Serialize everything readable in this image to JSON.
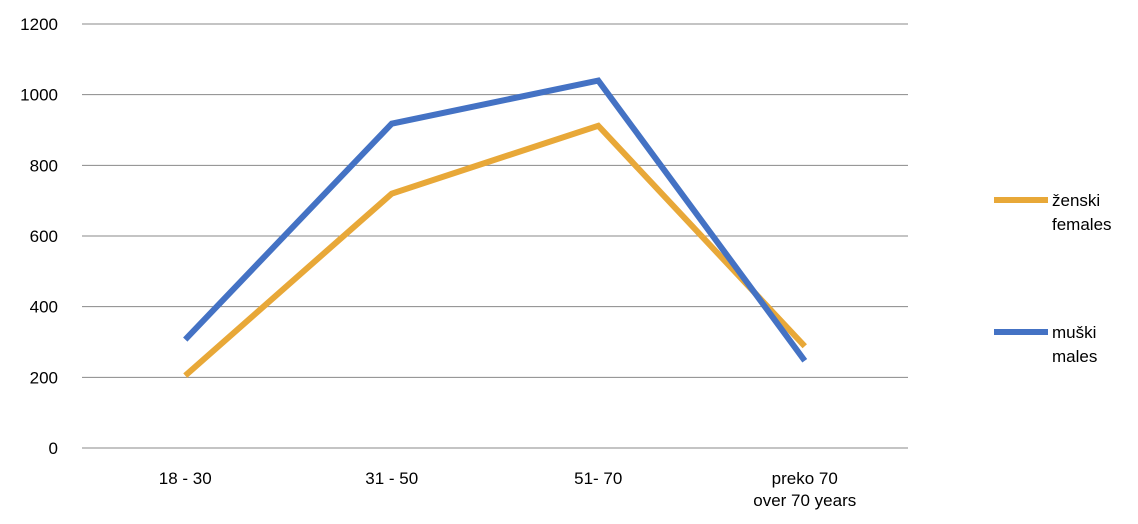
{
  "chart_data": {
    "type": "line",
    "title": "",
    "xlabel": "",
    "ylabel": "",
    "categories": [
      [
        "18 - 30"
      ],
      [
        "31 - 50"
      ],
      [
        "51- 70"
      ],
      [
        "preko 70",
        "over 70 years"
      ]
    ],
    "ylim": [
      0,
      1200
    ],
    "yticks": [
      0,
      200,
      400,
      600,
      800,
      1000,
      1200
    ],
    "grid": true,
    "legend_position": "right",
    "series": [
      {
        "name": [
          "ženski",
          "females"
        ],
        "color": "#E8A838",
        "values": [
          205,
          720,
          912,
          288
        ]
      },
      {
        "name": [
          "muški",
          "males"
        ],
        "color": "#4472C4",
        "values": [
          307,
          918,
          1040,
          247
        ]
      }
    ]
  },
  "colors": {
    "grid": "#898989",
    "text": "#000000"
  }
}
